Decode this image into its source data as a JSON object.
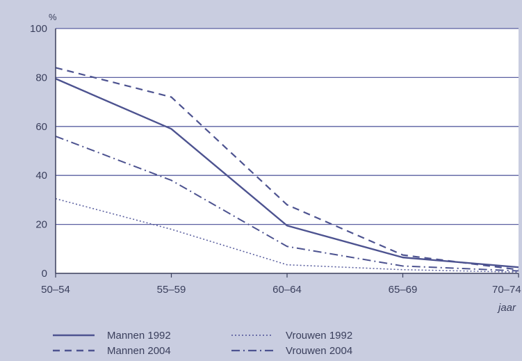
{
  "chart_data": {
    "type": "line",
    "categories": [
      "50–54",
      "55–59",
      "60–64",
      "65–69",
      "70–74"
    ],
    "ylim": [
      0,
      100
    ],
    "yticks": [
      0,
      20,
      40,
      60,
      80,
      100
    ],
    "y_unit": "%",
    "xlabel": "jaar",
    "grid": true,
    "legend_position": "bottom",
    "series": [
      {
        "name": "Mannen 1992",
        "values": [
          79.5,
          59,
          19.5,
          6.5,
          2.5
        ],
        "style": "solid",
        "color": "#4d5390"
      },
      {
        "name": "Mannen 2004",
        "values": [
          84,
          72,
          28,
          7.5,
          1.5
        ],
        "style": "dashed",
        "color": "#4d5390"
      },
      {
        "name": "Vrouwen 1992",
        "values": [
          30.5,
          18,
          3.5,
          1.5,
          0.5
        ],
        "style": "dotted",
        "color": "#5c61a0"
      },
      {
        "name": "Vrouwen 2004",
        "values": [
          56,
          38,
          11,
          3,
          1
        ],
        "style": "dashdot",
        "color": "#4d5390"
      }
    ]
  },
  "colors": {
    "plot_background": "#ffffff",
    "page_background": "#c9cde0",
    "gridline": "#5a5fa0",
    "axis": "#3a3f5c"
  }
}
